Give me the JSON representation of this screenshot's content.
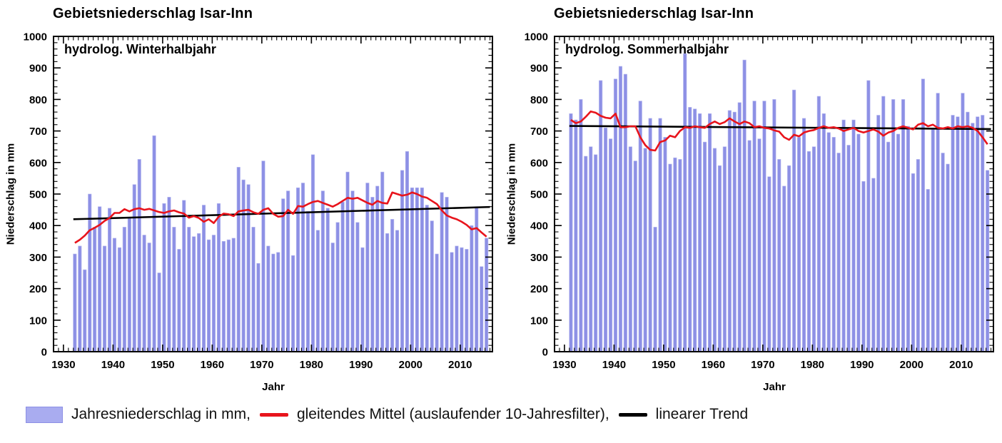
{
  "page": {
    "background": "#ffffff"
  },
  "colors": {
    "bar": "#8d90e5",
    "bar_edge": "#b6b8f0",
    "moving_average": "#e8141c",
    "trend": "#000000",
    "axis": "#000000",
    "legend_swatch": "#a9acf0",
    "text": "#000000"
  },
  "legend": {
    "items": [
      {
        "marker": "swatch",
        "label": "Jahresniederschlag in mm,"
      },
      {
        "marker": "red-line",
        "label": "gleitendes Mittel (auslaufender 10-Jahresfilter),"
      },
      {
        "marker": "black-line",
        "label": "linearer Trend"
      }
    ]
  },
  "chart_data": [
    {
      "id": "winter",
      "type": "bar",
      "title": "Gebietsniederschlag Isar-Inn",
      "subtitle": "hydrolog. Winterhalbjahr",
      "xlabel": "Jahr",
      "ylabel": "Niederschlag in mm",
      "ylim": [
        0,
        1000
      ],
      "y_tick_step": 100,
      "y_minor_step": 20,
      "xlim": [
        1928,
        2016.5
      ],
      "x_major_ticks": [
        1930,
        1940,
        1950,
        1960,
        1970,
        1980,
        1990,
        2000,
        2010
      ],
      "grid": false,
      "legend_position": "bottom",
      "years_start": 1932,
      "years_end": 2015,
      "values": [
        310,
        335,
        260,
        500,
        395,
        460,
        335,
        455,
        360,
        330,
        395,
        425,
        530,
        610,
        370,
        345,
        685,
        250,
        470,
        490,
        395,
        325,
        480,
        395,
        365,
        375,
        465,
        355,
        370,
        470,
        350,
        355,
        360,
        585,
        545,
        530,
        395,
        280,
        605,
        335,
        310,
        315,
        485,
        510,
        305,
        520,
        535,
        445,
        625,
        385,
        510,
        455,
        345,
        410,
        475,
        570,
        510,
        410,
        330,
        535,
        490,
        525,
        570,
        375,
        420,
        385,
        575,
        635,
        520,
        520,
        520,
        465,
        415,
        310,
        505,
        490,
        315,
        335,
        330,
        325,
        400,
        460,
        270,
        360
      ],
      "moving_average": {
        "years_start": 1932,
        "values": [
          345,
          355,
          368,
          385,
          393,
          402,
          415,
          424,
          440,
          440,
          452,
          445,
          452,
          455,
          450,
          453,
          448,
          443,
          440,
          445,
          448,
          442,
          438,
          425,
          430,
          424,
          412,
          420,
          408,
          428,
          438,
          436,
          430,
          445,
          448,
          450,
          442,
          437,
          450,
          455,
          437,
          428,
          430,
          450,
          437,
          462,
          460,
          468,
          475,
          478,
          472,
          466,
          460,
          468,
          478,
          488,
          485,
          488,
          480,
          472,
          466,
          478,
          472,
          470,
          505,
          500,
          495,
          498,
          505,
          500,
          492,
          488,
          478,
          468,
          448,
          432,
          425,
          420,
          412,
          402,
          388,
          392,
          378,
          365
        ]
      },
      "trend": {
        "x": [
          1932,
          2016
        ],
        "y": [
          420,
          459
        ]
      }
    },
    {
      "id": "sommer",
      "type": "bar",
      "title": "Gebietsniederschlag Isar-Inn",
      "subtitle": "hydrolog. Sommerhalbjahr",
      "xlabel": "Jahr",
      "ylabel": "Niederschlag in mm",
      "ylim": [
        0,
        1000
      ],
      "y_tick_step": 100,
      "y_minor_step": 20,
      "xlim": [
        1928,
        2016.5
      ],
      "x_major_ticks": [
        1930,
        1940,
        1950,
        1960,
        1970,
        1980,
        1990,
        2000,
        2010
      ],
      "grid": false,
      "legend_position": "bottom",
      "years_start": 1931,
      "years_end": 2015,
      "values": [
        755,
        735,
        800,
        620,
        650,
        625,
        860,
        710,
        675,
        865,
        905,
        880,
        650,
        605,
        795,
        645,
        740,
        395,
        740,
        680,
        595,
        615,
        610,
        945,
        775,
        770,
        755,
        665,
        755,
        645,
        590,
        650,
        765,
        760,
        790,
        925,
        670,
        795,
        675,
        795,
        555,
        800,
        610,
        525,
        590,
        830,
        680,
        740,
        635,
        650,
        810,
        755,
        695,
        680,
        630,
        735,
        655,
        735,
        690,
        540,
        860,
        550,
        750,
        810,
        665,
        800,
        690,
        800,
        715,
        565,
        610,
        865,
        515,
        705,
        820,
        630,
        595,
        750,
        745,
        820,
        760,
        725,
        745,
        750,
        575
      ],
      "moving_average": {
        "years_start": 1931,
        "values": [
          735,
          725,
          730,
          745,
          762,
          758,
          748,
          742,
          740,
          755,
          712,
          712,
          715,
          715,
          680,
          655,
          640,
          638,
          665,
          670,
          685,
          680,
          700,
          712,
          710,
          715,
          712,
          710,
          722,
          730,
          722,
          728,
          740,
          730,
          722,
          730,
          725,
          712,
          715,
          710,
          708,
          702,
          698,
          680,
          672,
          688,
          683,
          695,
          700,
          703,
          710,
          715,
          710,
          712,
          708,
          700,
          705,
          710,
          700,
          695,
          700,
          705,
          698,
          685,
          695,
          700,
          710,
          715,
          710,
          705,
          720,
          725,
          715,
          720,
          710,
          708,
          712,
          708,
          715,
          712,
          715,
          710,
          700,
          680,
          658
        ]
      },
      "trend": {
        "x": [
          1931,
          2016
        ],
        "y": [
          716,
          706
        ]
      }
    }
  ]
}
